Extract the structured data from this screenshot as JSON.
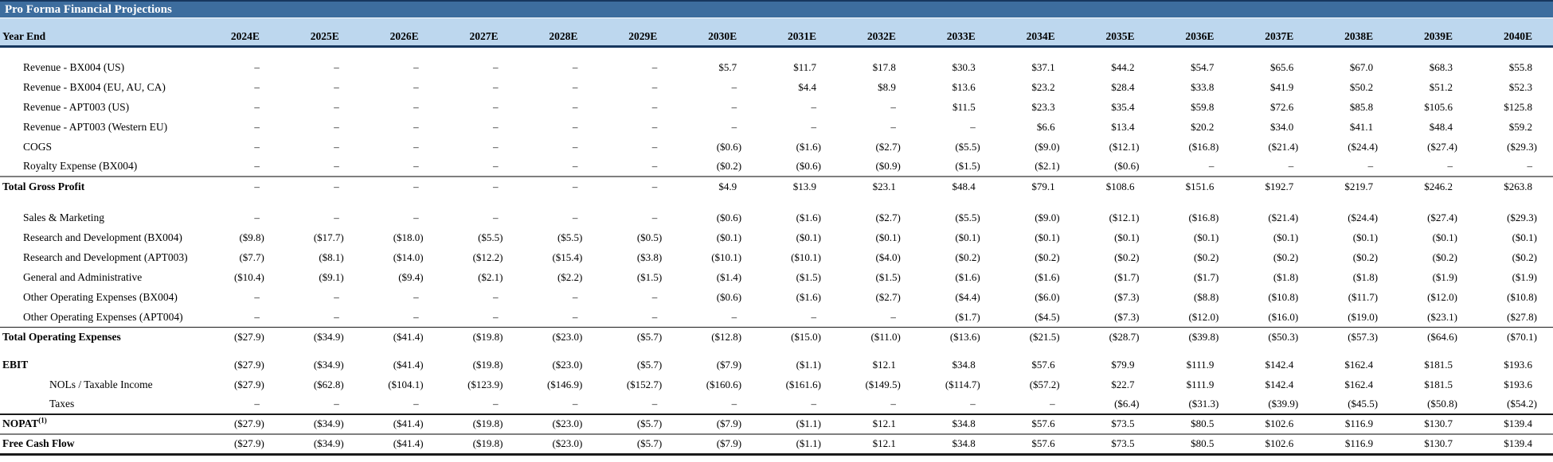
{
  "title": "Pro Forma Financial Projections",
  "header": {
    "row_label": "Year End",
    "years": [
      "2024E",
      "2025E",
      "2026E",
      "2027E",
      "2028E",
      "2029E",
      "2030E",
      "2031E",
      "2032E",
      "2033E",
      "2034E",
      "2035E",
      "2036E",
      "2037E",
      "2038E",
      "2039E",
      "2040E"
    ]
  },
  "rows": [
    {
      "label": "Revenue - BX004 (US)",
      "style": "item",
      "gap": "lg",
      "values": [
        "–",
        "–",
        "–",
        "–",
        "–",
        "–",
        "$5.7",
        "$11.7",
        "$17.8",
        "$30.3",
        "$37.1",
        "$44.2",
        "$54.7",
        "$65.6",
        "$67.0",
        "$68.3",
        "$55.8"
      ]
    },
    {
      "label": "Revenue - BX004  (EU, AU, CA)",
      "style": "item",
      "values": [
        "–",
        "–",
        "–",
        "–",
        "–",
        "–",
        "–",
        "$4.4",
        "$8.9",
        "$13.6",
        "$23.2",
        "$28.4",
        "$33.8",
        "$41.9",
        "$50.2",
        "$51.2",
        "$52.3"
      ]
    },
    {
      "label": "Revenue - APT003 (US)",
      "style": "item",
      "values": [
        "–",
        "–",
        "–",
        "–",
        "–",
        "–",
        "–",
        "–",
        "–",
        "$11.5",
        "$23.3",
        "$35.4",
        "$59.8",
        "$72.6",
        "$85.8",
        "$105.6",
        "$125.8"
      ]
    },
    {
      "label": "Revenue - APT003 (Western EU)",
      "style": "item",
      "values": [
        "–",
        "–",
        "–",
        "–",
        "–",
        "–",
        "–",
        "–",
        "–",
        "–",
        "$6.6",
        "$13.4",
        "$20.2",
        "$34.0",
        "$41.1",
        "$48.4",
        "$59.2"
      ]
    },
    {
      "label": "COGS",
      "style": "item",
      "values": [
        "–",
        "–",
        "–",
        "–",
        "–",
        "–",
        "($0.6)",
        "($1.6)",
        "($2.7)",
        "($5.5)",
        "($9.0)",
        "($12.1)",
        "($16.8)",
        "($21.4)",
        "($24.4)",
        "($27.4)",
        "($29.3)"
      ]
    },
    {
      "label": "Royalty Expense (BX004)",
      "style": "item",
      "values": [
        "–",
        "–",
        "–",
        "–",
        "–",
        "–",
        "($0.2)",
        "($0.6)",
        "($0.9)",
        "($1.5)",
        "($2.1)",
        "($0.6)",
        "–",
        "–",
        "–",
        "–",
        "–"
      ]
    },
    {
      "label": "Total Gross Profit",
      "style": "total",
      "rule": "gray",
      "values": [
        "–",
        "–",
        "–",
        "–",
        "–",
        "–",
        "$4.9",
        "$13.9",
        "$23.1",
        "$48.4",
        "$79.1",
        "$108.6",
        "$151.6",
        "$192.7",
        "$219.7",
        "$246.2",
        "$263.8"
      ]
    },
    {
      "label": "Sales & Marketing",
      "style": "item",
      "gap": "lg",
      "values": [
        "–",
        "–",
        "–",
        "–",
        "–",
        "–",
        "($0.6)",
        "($1.6)",
        "($2.7)",
        "($5.5)",
        "($9.0)",
        "($12.1)",
        "($16.8)",
        "($21.4)",
        "($24.4)",
        "($27.4)",
        "($29.3)"
      ]
    },
    {
      "label": "Research and Development (BX004)",
      "style": "item",
      "values": [
        "($9.8)",
        "($17.7)",
        "($18.0)",
        "($5.5)",
        "($5.5)",
        "($0.5)",
        "($0.1)",
        "($0.1)",
        "($0.1)",
        "($0.1)",
        "($0.1)",
        "($0.1)",
        "($0.1)",
        "($0.1)",
        "($0.1)",
        "($0.1)",
        "($0.1)"
      ]
    },
    {
      "label": "Research and Development (APT003)",
      "style": "item",
      "values": [
        "($7.7)",
        "($8.1)",
        "($14.0)",
        "($12.2)",
        "($15.4)",
        "($3.8)",
        "($10.1)",
        "($10.1)",
        "($4.0)",
        "($0.2)",
        "($0.2)",
        "($0.2)",
        "($0.2)",
        "($0.2)",
        "($0.2)",
        "($0.2)",
        "($0.2)"
      ]
    },
    {
      "label": "General and Administrative",
      "style": "item",
      "values": [
        "($10.4)",
        "($9.1)",
        "($9.4)",
        "($2.1)",
        "($2.2)",
        "($1.5)",
        "($1.4)",
        "($1.5)",
        "($1.5)",
        "($1.6)",
        "($1.6)",
        "($1.7)",
        "($1.7)",
        "($1.8)",
        "($1.8)",
        "($1.9)",
        "($1.9)"
      ]
    },
    {
      "label": "Other Operating Expenses (BX004)",
      "style": "item",
      "values": [
        "–",
        "–",
        "–",
        "–",
        "–",
        "–",
        "($0.6)",
        "($1.6)",
        "($2.7)",
        "($4.4)",
        "($6.0)",
        "($7.3)",
        "($8.8)",
        "($10.8)",
        "($11.7)",
        "($12.0)",
        "($10.8)"
      ]
    },
    {
      "label": "Other Operating Expenses (APT004)",
      "style": "item",
      "values": [
        "–",
        "–",
        "–",
        "–",
        "–",
        "–",
        "–",
        "–",
        "–",
        "($1.7)",
        "($4.5)",
        "($7.3)",
        "($12.0)",
        "($16.0)",
        "($19.0)",
        "($23.1)",
        "($27.8)"
      ]
    },
    {
      "label": "Total Operating Expenses",
      "style": "total",
      "rule": "dark",
      "values": [
        "($27.9)",
        "($34.9)",
        "($41.4)",
        "($19.8)",
        "($23.0)",
        "($5.7)",
        "($12.8)",
        "($15.0)",
        "($11.0)",
        "($13.6)",
        "($21.5)",
        "($28.7)",
        "($39.8)",
        "($50.3)",
        "($57.3)",
        "($64.6)",
        "($70.1)"
      ]
    },
    {
      "label": "EBIT",
      "style": "total",
      "gap": "sm",
      "values": [
        "($27.9)",
        "($34.9)",
        "($41.4)",
        "($19.8)",
        "($23.0)",
        "($5.7)",
        "($7.9)",
        "($1.1)",
        "$12.1",
        "$34.8",
        "$57.6",
        "$79.9",
        "$111.9",
        "$142.4",
        "$162.4",
        "$181.5",
        "$193.6"
      ]
    },
    {
      "label": "NOLs / Taxable Income",
      "style": "subitem",
      "values": [
        "($27.9)",
        "($62.8)",
        "($104.1)",
        "($123.9)",
        "($146.9)",
        "($152.7)",
        "($160.6)",
        "($161.6)",
        "($149.5)",
        "($114.7)",
        "($57.2)",
        "$22.7",
        "$111.9",
        "$142.4",
        "$162.4",
        "$181.5",
        "$193.6"
      ]
    },
    {
      "label": "Taxes",
      "style": "subitem",
      "values": [
        "–",
        "–",
        "–",
        "–",
        "–",
        "–",
        "–",
        "–",
        "–",
        "–",
        "–",
        "($6.4)",
        "($31.3)",
        "($39.9)",
        "($45.5)",
        "($50.8)",
        "($54.2)"
      ]
    },
    {
      "label": "NOPAT",
      "sup": "(1)",
      "style": "total",
      "rule": "dark2",
      "values": [
        "($27.9)",
        "($34.9)",
        "($41.4)",
        "($19.8)",
        "($23.0)",
        "($5.7)",
        "($7.9)",
        "($1.1)",
        "$12.1",
        "$34.8",
        "$57.6",
        "$73.5",
        "$80.5",
        "$102.6",
        "$116.9",
        "$130.7",
        "$139.4"
      ]
    },
    {
      "label": "Free Cash Flow",
      "style": "total",
      "rule": "gray",
      "bottom": true,
      "values": [
        "($27.9)",
        "($34.9)",
        "($41.4)",
        "($19.8)",
        "($23.0)",
        "($5.7)",
        "($7.9)",
        "($1.1)",
        "$12.1",
        "$34.8",
        "$57.6",
        "$73.5",
        "$80.5",
        "$102.6",
        "$116.9",
        "$130.7",
        "$139.4"
      ]
    }
  ],
  "colors": {
    "title_bar_bg": "#3d6d9e",
    "header_band_bg": "#bdd7ee",
    "navy_border": "#17375e",
    "rule_gray": "#7f7f7f",
    "rule_dark": "#1a1a1a",
    "text": "#000000"
  }
}
